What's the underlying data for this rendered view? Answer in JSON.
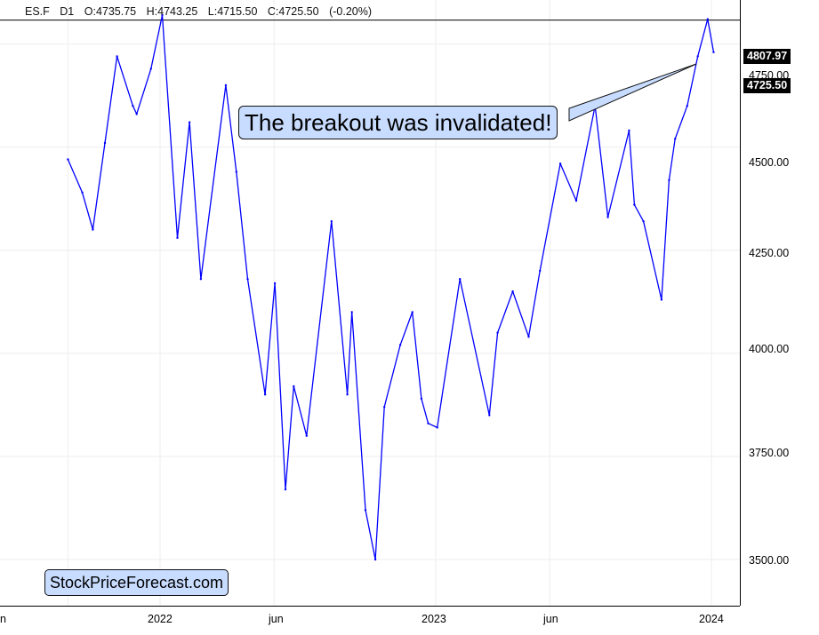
{
  "header": {
    "symbol": "ES.F",
    "timeframe": "D1",
    "open": "O:4735.75",
    "high": "H:4743.25",
    "low": "L:4715.50",
    "close": "C:4725.50",
    "change": "(-0.20%)"
  },
  "annotation": "The breakout was invalidated!",
  "watermark": "StockPriceForecast.com",
  "price_labels": {
    "horizontal_line": "4807.97",
    "last_price": "4725.50",
    "hidden_tick": "4750.00"
  },
  "colors": {
    "series": "#0000ff",
    "label_bg": "#c8dcff",
    "grid": "#eeeeee"
  },
  "chart_data": {
    "type": "line",
    "title": "",
    "xlabel": "",
    "ylabel": "",
    "x_ticks": [
      "n",
      "2022",
      "jun",
      "2023",
      "jun",
      "2024"
    ],
    "y_ticks": [
      "3500.00",
      "3750.00",
      "4000.00",
      "4250.00",
      "4500.00",
      "4750.00"
    ],
    "ylim": [
      3410,
      4880
    ],
    "horizontal_line": 4807.97,
    "last_price": 4725.5,
    "grid": true,
    "series": [
      {
        "x": [
          "2021-09-01",
          "2021-09-20",
          "2021-10-04",
          "2021-10-20",
          "2021-11-05",
          "2021-11-26",
          "2021-12-01",
          "2021-12-20",
          "2022-01-04",
          "2022-01-24",
          "2022-02-09",
          "2022-02-24",
          "2022-03-29",
          "2022-04-12",
          "2022-04-27",
          "2022-05-20",
          "2022-06-02",
          "2022-06-16",
          "2022-06-27",
          "2022-07-14",
          "2022-08-16",
          "2022-09-06",
          "2022-09-12",
          "2022-09-30",
          "2022-10-13",
          "2022-10-25",
          "2022-11-15",
          "2022-12-01",
          "2022-12-13",
          "2022-12-22",
          "2023-01-03",
          "2023-02-02",
          "2023-03-13",
          "2023-03-24",
          "2023-04-13",
          "2023-05-04",
          "2023-05-19",
          "2023-06-15",
          "2023-07-06",
          "2023-07-31",
          "2023-08-17",
          "2023-09-14",
          "2023-09-21",
          "2023-10-03",
          "2023-10-27",
          "2023-11-06",
          "2023-11-14",
          "2023-11-30",
          "2023-12-14",
          "2023-12-27",
          "2024-01-04"
        ],
        "y": [
          4470,
          4390,
          4300,
          4510,
          4720,
          4600,
          4580,
          4690,
          4820,
          4280,
          4560,
          4180,
          4650,
          4440,
          4180,
          3900,
          4170,
          3670,
          3920,
          3800,
          4320,
          3900,
          4100,
          3620,
          3500,
          3870,
          4020,
          4100,
          3890,
          3830,
          3820,
          4180,
          3850,
          4050,
          4150,
          4040,
          4200,
          4460,
          4370,
          4600,
          4330,
          4540,
          4360,
          4320,
          4130,
          4420,
          4520,
          4600,
          4720,
          4810,
          4730
        ]
      }
    ]
  }
}
